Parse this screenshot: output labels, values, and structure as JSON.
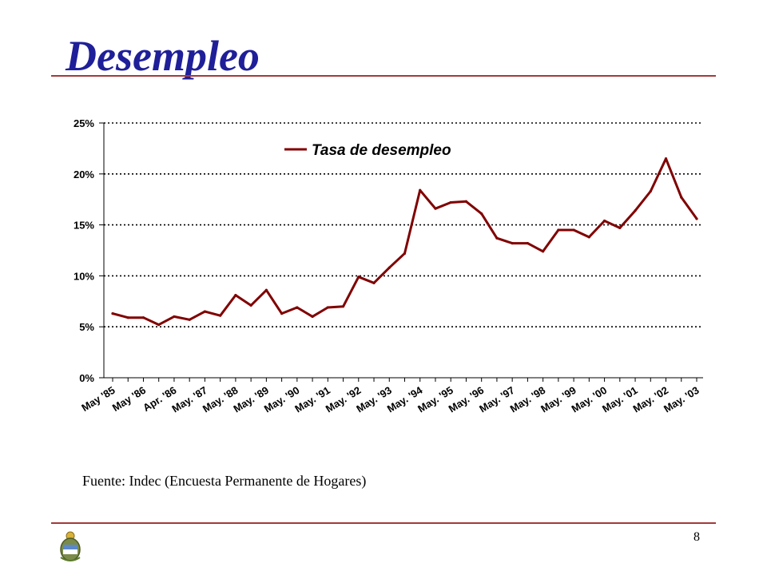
{
  "title": "Desempleo",
  "source": "Fuente: Indec (Encuesta Permanente de Hogares)",
  "page_number": "8",
  "colors": {
    "title": "#1f1f99",
    "rule": "#a23a3a",
    "series": "#800000",
    "grid": "#000000"
  },
  "chart_data": {
    "type": "line",
    "title": "",
    "xlabel": "",
    "ylabel": "",
    "ylim": [
      0,
      0.25
    ],
    "yticks": [
      0,
      0.05,
      0.1,
      0.15,
      0.2,
      0.25
    ],
    "ytick_labels": [
      "0%",
      "5%",
      "10%",
      "15%",
      "20%",
      "25%"
    ],
    "grid": "horizontal dotted",
    "legend": "top-center",
    "x_tick_labels": [
      "May '85",
      "May '86",
      "Apr. '86",
      "May. '87",
      "May. '88",
      "May. '89",
      "May. '90",
      "May. '91",
      "May. '92",
      "May. '93",
      "May. '94",
      "May. '95",
      "May. '96",
      "May. '97",
      "May. '98",
      "May. '99",
      "May. '00",
      "May. '01",
      "May. '02",
      "May. '03"
    ],
    "series": [
      {
        "name": "Tasa de desempleo",
        "values": [
          0.063,
          0.059,
          0.059,
          0.052,
          0.06,
          0.057,
          0.065,
          0.061,
          0.081,
          0.071,
          0.086,
          0.063,
          0.069,
          0.06,
          0.069,
          0.07,
          0.099,
          0.093,
          0.108,
          0.122,
          0.184,
          0.166,
          0.172,
          0.173,
          0.161,
          0.137,
          0.132,
          0.132,
          0.124,
          0.145,
          0.145,
          0.138,
          0.154,
          0.147,
          0.164,
          0.183,
          0.215,
          0.177,
          0.156
        ]
      }
    ]
  }
}
